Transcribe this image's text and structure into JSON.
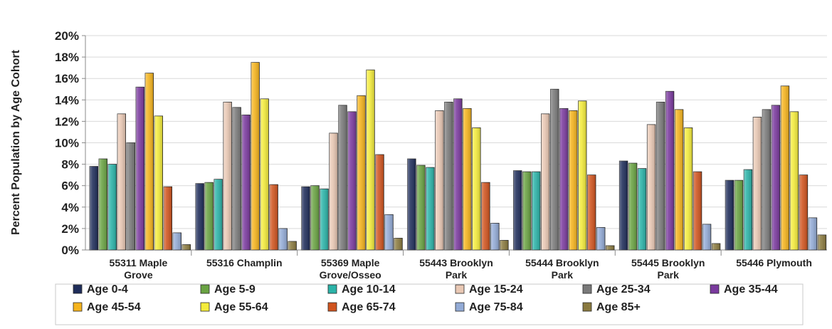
{
  "chart_data": {
    "type": "bar",
    "ylabel": "Percent Population by Age Cohort",
    "ylim": [
      0,
      20
    ],
    "yticks": [
      "0%",
      "2%",
      "4%",
      "6%",
      "8%",
      "10%",
      "12%",
      "14%",
      "16%",
      "18%",
      "20%"
    ],
    "grid": true,
    "legend_position": "bottom",
    "categories": [
      [
        "55311 Maple",
        "Grove"
      ],
      [
        "55316 Champlin"
      ],
      [
        "55369 Maple",
        "Grove/Osseo"
      ],
      [
        "55443 Brooklyn",
        "Park"
      ],
      [
        "55444 Brooklyn",
        "Park"
      ],
      [
        "55445 Brooklyn",
        "Park"
      ],
      [
        "55446 Plymouth"
      ]
    ],
    "series": [
      {
        "name": "Age 0-4",
        "color": "#1f2d5a",
        "values": [
          7.8,
          6.2,
          5.9,
          8.5,
          7.4,
          8.3,
          6.5
        ]
      },
      {
        "name": "Age 5-9",
        "color": "#6aa343",
        "values": [
          8.5,
          6.3,
          6.0,
          7.9,
          7.3,
          8.1,
          6.5
        ]
      },
      {
        "name": "Age 10-14",
        "color": "#2bb3a8",
        "values": [
          8.0,
          6.6,
          5.7,
          7.7,
          7.3,
          7.6,
          7.5
        ]
      },
      {
        "name": "Age 15-24",
        "color": "#e9c8b4",
        "values": [
          12.7,
          13.8,
          10.9,
          13.0,
          12.7,
          11.7,
          12.4
        ]
      },
      {
        "name": "Age 25-34",
        "color": "#7a7a7a",
        "values": [
          10.0,
          13.3,
          13.5,
          13.8,
          15.0,
          13.8,
          13.1
        ]
      },
      {
        "name": "Age 35-44",
        "color": "#7a3a9e",
        "values": [
          15.2,
          12.6,
          12.9,
          14.1,
          13.2,
          14.8,
          13.5
        ]
      },
      {
        "name": "Age 45-54",
        "color": "#f5b41e",
        "values": [
          16.5,
          17.5,
          14.4,
          13.2,
          13.0,
          13.1,
          15.3
        ]
      },
      {
        "name": "Age 55-64",
        "color": "#f4ec3c",
        "values": [
          12.5,
          14.1,
          16.8,
          11.4,
          13.9,
          11.4,
          12.9
        ]
      },
      {
        "name": "Age 65-74",
        "color": "#d0541f",
        "values": [
          5.9,
          6.1,
          8.9,
          6.3,
          7.0,
          7.3,
          7.0
        ]
      },
      {
        "name": "Age 75-84",
        "color": "#93abd6",
        "values": [
          1.6,
          2.0,
          3.3,
          2.5,
          2.1,
          2.4,
          3.0
        ]
      },
      {
        "name": "Age 85+",
        "color": "#8a7a3f",
        "values": [
          0.5,
          0.8,
          1.1,
          0.9,
          0.4,
          0.6,
          1.4
        ]
      }
    ]
  }
}
